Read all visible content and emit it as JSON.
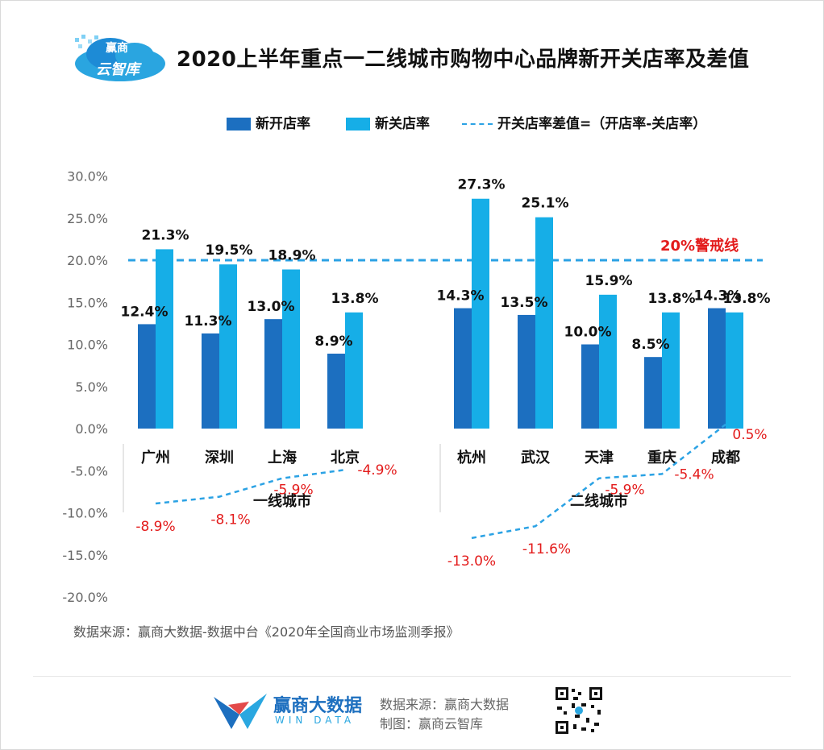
{
  "header": {
    "logo_line1": "赢商",
    "logo_line2": "云智库",
    "title": "2020上半年重点一二线城市购物中心品牌新开关店率及差值"
  },
  "legend": {
    "open_label": "新开店率",
    "close_label": "新关店率",
    "diff_label": "开关店率差值=（开店率-关店率）"
  },
  "colors": {
    "open": "#1c6fc0",
    "close": "#16aee7",
    "diff": "#2ba2e4",
    "warning": "#e31b1b",
    "negative_label": "#e31b1b"
  },
  "chart_data": {
    "type": "bar",
    "categories": [
      "广州",
      "深圳",
      "上海",
      "北京",
      "杭州",
      "武汉",
      "天津",
      "重庆",
      "成都"
    ],
    "series": [
      {
        "name": "新开店率",
        "values": [
          12.4,
          11.3,
          13.0,
          8.9,
          14.3,
          13.5,
          10.0,
          8.5,
          14.3
        ],
        "labels": [
          "12.4%",
          "11.3%",
          "13.0%",
          "8.9%",
          "14.3%",
          "13.5%",
          "10.0%",
          "8.5%",
          "14.3%"
        ]
      },
      {
        "name": "新关店率",
        "values": [
          21.3,
          19.5,
          18.9,
          13.8,
          27.3,
          25.1,
          15.9,
          13.8,
          13.8
        ],
        "labels": [
          "21.3%",
          "19.5%",
          "18.9%",
          "13.8%",
          "27.3%",
          "25.1%",
          "15.9%",
          "13.8%",
          "13.8%"
        ]
      },
      {
        "name": "开关店率差值=（开店率-关店率）",
        "type": "line",
        "values": [
          -8.9,
          -8.1,
          -5.9,
          -4.9,
          -13.0,
          -11.6,
          -5.9,
          -5.4,
          0.5
        ],
        "labels": [
          "-8.9%",
          "-8.1%",
          "-5.9%",
          "-4.9%",
          "-13.0%",
          "-11.6%",
          "-5.9%",
          "-5.4%",
          "0.5%"
        ]
      }
    ],
    "groups": [
      {
        "label": "一线城市",
        "categories": [
          "广州",
          "深圳",
          "上海",
          "北京"
        ]
      },
      {
        "label": "二线城市",
        "categories": [
          "杭州",
          "武汉",
          "天津",
          "重庆",
          "成都"
        ]
      }
    ],
    "warning_line": {
      "value": 20,
      "label": "20%警戒线"
    },
    "ylim": [
      -20,
      30
    ],
    "yticks": [
      "30.0%",
      "25.0%",
      "20.0%",
      "15.0%",
      "10.0%",
      "5.0%",
      "0.0%",
      "-5.0%",
      "-10.0%",
      "-15.0%",
      "-20.0%"
    ],
    "ytick_values": [
      30,
      25,
      20,
      15,
      10,
      5,
      0,
      -5,
      -10,
      -15,
      -20
    ]
  },
  "source_note": "数据来源：赢商大数据-数据中台《2020年全国商业市场监测季报》",
  "footer": {
    "brand": "赢商大数据",
    "brand_sub": "WIN DATA",
    "source": "数据来源：赢商大数据",
    "maker": "制图：赢商云智库"
  }
}
